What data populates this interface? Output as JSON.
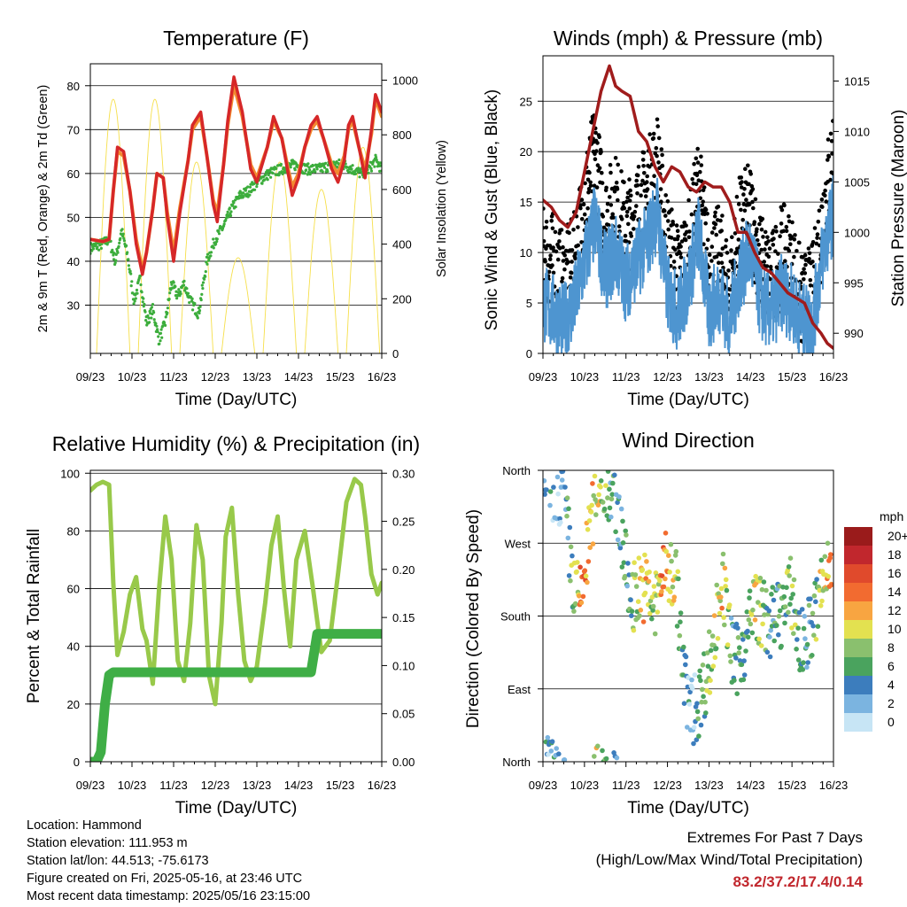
{
  "xticks": [
    "09/23",
    "10/23",
    "11/23",
    "12/23",
    "13/23",
    "14/23",
    "15/23",
    "16/23"
  ],
  "colors": {
    "temp_red": "#d62728",
    "temp_orange": "#f28a30",
    "dew_green": "#3cad3c",
    "solar_yellow": "#f6df4a",
    "wind_blue": "#4e95d0",
    "gust_black": "#000000",
    "pressure_maroon": "#a01c1c",
    "rh_lightgreen": "#98c94a",
    "precip_green": "#3fae46"
  },
  "chart_data": [
    {
      "type": "line",
      "title": "Temperature (F)",
      "xlabel": "Time (Day/UTC)",
      "ylabel": "2m & 9m T (Red, Orange) & 2m Td (Green)",
      "ylabel_right": "Solar Insolation (Yellow)",
      "ylim": [
        19,
        85
      ],
      "ylim_right": [
        0,
        1060
      ],
      "yticks": [
        30,
        40,
        50,
        60,
        70,
        80
      ],
      "yticks_right": [
        0,
        200,
        400,
        600,
        800,
        1000
      ],
      "grid": true,
      "series": [
        {
          "name": "2m T",
          "color": "#d62728",
          "x": [
            0,
            0.3,
            0.45,
            0.55,
            0.65,
            0.8,
            0.95,
            1.1,
            1.25,
            1.35,
            1.5,
            1.6,
            1.75,
            1.85,
            2.0,
            2.15,
            2.35,
            2.45,
            2.65,
            2.8,
            2.95,
            3.05,
            3.2,
            3.3,
            3.45,
            3.65,
            3.85,
            4.0,
            4.25,
            4.4,
            4.6,
            4.75,
            4.85,
            5.0,
            5.15,
            5.3,
            5.45,
            5.6,
            5.8,
            5.95,
            6.1,
            6.2,
            6.3,
            6.45,
            6.6,
            6.75,
            6.85,
            7.0
          ],
          "values": [
            45,
            44.5,
            45,
            56,
            66,
            65,
            56,
            44,
            37,
            42,
            52,
            60,
            59,
            50,
            40,
            51,
            63,
            71,
            74,
            64,
            53,
            49,
            62,
            72,
            82,
            74,
            61,
            58,
            66,
            73,
            68,
            60,
            55,
            59,
            66,
            71,
            73,
            68,
            61,
            58,
            63,
            71,
            73,
            66,
            59,
            70,
            78,
            74
          ]
        },
        {
          "name": "9m T",
          "color": "#f28a30",
          "x": [
            0,
            0.3,
            0.45,
            0.55,
            0.65,
            0.8,
            0.95,
            1.1,
            1.25,
            1.35,
            1.5,
            1.6,
            1.75,
            1.85,
            2.0,
            2.15,
            2.35,
            2.45,
            2.65,
            2.8,
            2.95,
            3.05,
            3.2,
            3.3,
            3.45,
            3.65,
            3.85,
            4.0,
            4.25,
            4.4,
            4.6,
            4.75,
            4.85,
            5.0,
            5.15,
            5.3,
            5.45,
            5.6,
            5.8,
            5.95,
            6.1,
            6.2,
            6.3,
            6.45,
            6.6,
            6.75,
            6.85,
            7.0
          ],
          "values": [
            45,
            44.5,
            45,
            56,
            65,
            64,
            56,
            45,
            38,
            42,
            52,
            60,
            59,
            51,
            42,
            52,
            63,
            70,
            73,
            64,
            54,
            51,
            62,
            71,
            80,
            73,
            62,
            59,
            66,
            72,
            68,
            61,
            57,
            60,
            66,
            70,
            72,
            68,
            62,
            60,
            64,
            70,
            72,
            66,
            61,
            69,
            77,
            73
          ]
        },
        {
          "name": "2m Td",
          "color": "#3cad3c",
          "x": [
            0,
            0.3,
            0.45,
            0.6,
            0.75,
            0.9,
            1.05,
            1.2,
            1.35,
            1.5,
            1.65,
            1.8,
            1.95,
            2.1,
            2.25,
            2.4,
            2.6,
            2.8,
            3.0,
            3.2,
            3.4,
            3.6,
            3.8,
            4.0,
            4.3,
            4.6,
            4.9,
            5.2,
            5.5,
            5.8,
            6.1,
            6.3,
            6.5,
            6.7,
            6.85,
            7.0
          ],
          "values": [
            43,
            44,
            45,
            40,
            47,
            41,
            31,
            36,
            26,
            29,
            22,
            26,
            35,
            32,
            35,
            31,
            28,
            40,
            45,
            48,
            52,
            55,
            56,
            58,
            60,
            61,
            62,
            61,
            61,
            62,
            62,
            61,
            60,
            61,
            63,
            61
          ]
        },
        {
          "name": "Solar",
          "color": "#f6df4a",
          "axis": "right",
          "x": [
            0.1,
            0.55,
            1.0,
            1.55,
            2.0,
            2.55,
            3.0,
            3.55,
            4.0,
            4.55,
            5.0,
            5.55,
            6.0,
            6.7,
            6.85,
            7.0
          ],
          "values": [
            0,
            930,
            0,
            930,
            0,
            700,
            0,
            350,
            0,
            700,
            0,
            600,
            0,
            960,
            100,
            700
          ]
        }
      ]
    },
    {
      "type": "line",
      "title": "Winds (mph) & Pressure (mb)",
      "xlabel": "Time (Day/UTC)",
      "ylabel": "Sonic Wind & Gust (Blue, Black)",
      "ylabel_right": "Station Pressure (Maroon)",
      "ylim": [
        0,
        29.5
      ],
      "ylim_right": [
        988,
        1017.5
      ],
      "yticks": [
        0,
        5,
        10,
        15,
        20,
        25
      ],
      "yticks_right": [
        990,
        995,
        1000,
        1005,
        1010,
        1015
      ],
      "grid": true,
      "series": [
        {
          "name": "Sonic Wind",
          "color": "#4e95d0",
          "x": [
            0,
            0.25,
            0.5,
            0.75,
            1.0,
            1.25,
            1.5,
            1.75,
            2.0,
            2.25,
            2.5,
            2.75,
            3.0,
            3.25,
            3.5,
            3.75,
            4.0,
            4.25,
            4.5,
            4.75,
            5.0,
            5.25,
            5.5,
            5.75,
            6.0,
            6.25,
            6.5,
            6.75,
            7.0
          ],
          "values": [
            5,
            4,
            3,
            5,
            9,
            13,
            8,
            10,
            7,
            9,
            11,
            14,
            6,
            4,
            7,
            12,
            4,
            6,
            3,
            8,
            10,
            5,
            4,
            6,
            5,
            3,
            3,
            10,
            14
          ]
        },
        {
          "name": "Gust",
          "color": "#000000",
          "x": [
            0,
            0.25,
            0.5,
            0.75,
            1.0,
            1.25,
            1.5,
            1.75,
            2.0,
            2.25,
            2.5,
            2.75,
            3.0,
            3.25,
            3.5,
            3.75,
            4.0,
            4.25,
            4.5,
            4.75,
            5.0,
            5.25,
            5.5,
            5.75,
            6.0,
            6.25,
            6.5,
            6.75,
            7.0
          ],
          "values": [
            10,
            9,
            7,
            9,
            15,
            20,
            13,
            15,
            12,
            14,
            16,
            19,
            11,
            8,
            10,
            17,
            8,
            10,
            6,
            13,
            14,
            9,
            7,
            10,
            9,
            5,
            6,
            14,
            20
          ]
        },
        {
          "name": "Pressure",
          "color": "#a01c1c",
          "axis": "right",
          "x": [
            0,
            0.2,
            0.4,
            0.6,
            0.8,
            1.0,
            1.2,
            1.4,
            1.6,
            1.75,
            1.9,
            2.1,
            2.3,
            2.5,
            2.7,
            2.9,
            3.1,
            3.3,
            3.5,
            3.7,
            3.9,
            4.1,
            4.3,
            4.5,
            4.7,
            4.9,
            5.1,
            5.3,
            5.5,
            5.7,
            5.9,
            6.1,
            6.3,
            6.5,
            6.7,
            6.85,
            7.0
          ],
          "values": [
            1003.2,
            1002.5,
            1001.2,
            1000.5,
            1002,
            1006,
            1010,
            1014,
            1016.5,
            1014.5,
            1014,
            1013.5,
            1010,
            1009,
            1006.5,
            1005,
            1006.5,
            1006,
            1004.5,
            1004,
            1005,
            1004.5,
            1004.5,
            1003,
            1000,
            1000,
            998,
            996.5,
            996,
            995,
            994,
            993.5,
            993,
            991,
            990,
            989,
            988.5
          ]
        }
      ]
    },
    {
      "type": "line",
      "title": "Relative Humidity (%) & Precipitation (in)",
      "xlabel": "Time (Day/UTC)",
      "ylabel": "Percent & Total Rainfall",
      "ylim": [
        0,
        101
      ],
      "ylim_right": [
        0,
        0.303
      ],
      "yticks": [
        0,
        20,
        40,
        60,
        80,
        100
      ],
      "yticks_right": [
        "0.00",
        "0.05",
        "0.10",
        "0.15",
        "0.20",
        "0.25",
        "0.30"
      ],
      "grid": true,
      "series": [
        {
          "name": "RH",
          "color": "#98c94a",
          "x": [
            0,
            0.15,
            0.3,
            0.45,
            0.55,
            0.65,
            0.8,
            0.95,
            1.1,
            1.25,
            1.35,
            1.5,
            1.65,
            1.8,
            1.95,
            2.1,
            2.25,
            2.4,
            2.55,
            2.7,
            2.85,
            3.0,
            3.15,
            3.25,
            3.4,
            3.55,
            3.7,
            3.85,
            4.0,
            4.2,
            4.35,
            4.5,
            4.65,
            4.8,
            4.95,
            5.15,
            5.35,
            5.55,
            5.75,
            5.95,
            6.15,
            6.35,
            6.5,
            6.6,
            6.75,
            6.9,
            7.0
          ],
          "values": [
            94,
            96,
            97,
            96,
            62,
            37,
            45,
            58,
            64,
            46,
            42,
            27,
            60,
            85,
            70,
            35,
            28,
            48,
            82,
            70,
            30,
            20,
            48,
            78,
            88,
            58,
            35,
            28,
            33,
            55,
            75,
            85,
            60,
            40,
            70,
            80,
            60,
            38,
            42,
            65,
            90,
            98,
            96,
            85,
            65,
            58,
            62
          ]
        },
        {
          "name": "Total Precipitation",
          "color": "#3fae46",
          "axis": "right",
          "x": [
            0,
            0.15,
            0.25,
            0.35,
            0.45,
            0.55,
            1.0,
            2.0,
            3.0,
            4.0,
            5.0,
            5.3,
            5.45,
            6.0,
            7.0
          ],
          "values": [
            0,
            0,
            0.01,
            0.06,
            0.09,
            0.093,
            0.093,
            0.093,
            0.093,
            0.093,
            0.093,
            0.093,
            0.133,
            0.133,
            0.133
          ]
        }
      ]
    },
    {
      "type": "scatter",
      "title": "Wind Direction",
      "xlabel": "Time (Day/UTC)",
      "ylabel": "Direction (Colored By Speed)",
      "yticks": [
        "North",
        "East",
        "South",
        "West",
        "North"
      ],
      "grid": true,
      "legend": {
        "title": "mph",
        "placement": "right",
        "labels": [
          "20+",
          "18",
          "16",
          "14",
          "12",
          "10",
          "8",
          "6",
          "4",
          "2",
          "0"
        ],
        "colors": [
          "#9a1b1b",
          "#c1272d",
          "#e04a2c",
          "#f26b30",
          "#f8a541",
          "#e3e150",
          "#8ac06e",
          "#4aa35e",
          "#3c7dbd",
          "#7bb4e0",
          "#c7e5f5"
        ]
      },
      "series": [
        {
          "name": "direction",
          "x": [
            0.1,
            0.25,
            0.5,
            0.75,
            0.9,
            1.1,
            1.3,
            1.55,
            1.8,
            2.1,
            2.4,
            2.7,
            2.9,
            3.2,
            3.4,
            3.6,
            3.8,
            4.1,
            4.3,
            4.6,
            4.9,
            5.1,
            5.3,
            5.5,
            5.8,
            6.0,
            6.2,
            6.5,
            6.8,
            7.0
          ],
          "values": [
            355,
            340,
            330,
            210,
            200,
            270,
            350,
            345,
            320,
            200,
            220,
            190,
            240,
            230,
            100,
            60,
            80,
            140,
            230,
            120,
            150,
            200,
            180,
            170,
            190,
            210,
            140,
            170,
            230,
            260
          ],
          "speed": [
            4,
            2,
            4,
            8,
            14,
            12,
            10,
            6,
            4,
            6,
            12,
            8,
            14,
            10,
            4,
            2,
            6,
            8,
            12,
            4,
            6,
            10,
            8,
            4,
            6,
            8,
            4,
            6,
            10,
            14
          ]
        }
      ]
    }
  ],
  "footer": {
    "location": "Location: Hammond",
    "elevation": "Station elevation: 111.953 m",
    "latlon": "Station lat/lon: 44.513; -75.6173",
    "created": "Figure created on Fri, 2025-05-16, at 23:46 UTC",
    "recent": "Most recent data timestamp: 2025/05/16 23:15:00"
  },
  "extremes": {
    "title": "Extremes For Past 7 Days",
    "subtitle": "(High/Low/Max Wind/Total Precipitation)",
    "values": "83.2/37.2/17.4/0.14"
  }
}
